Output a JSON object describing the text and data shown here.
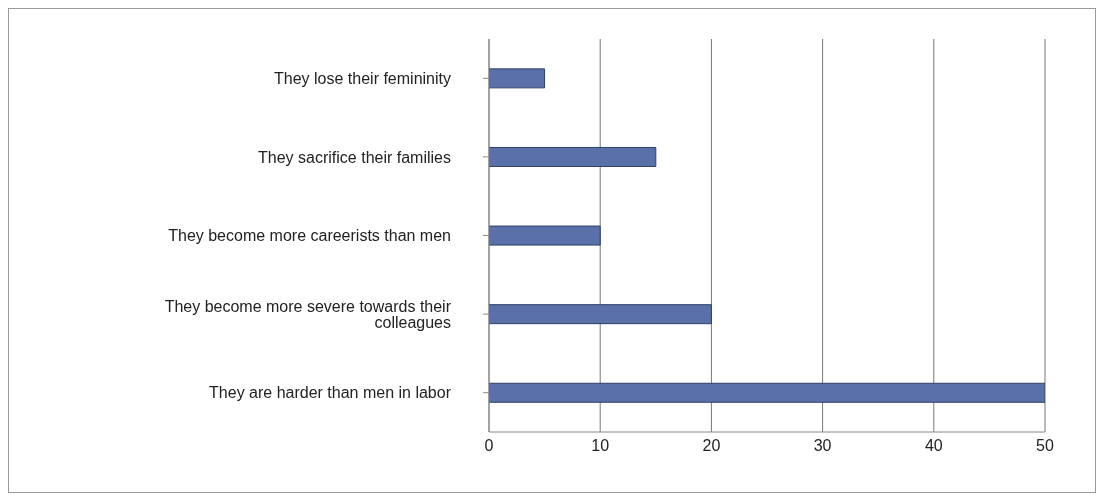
{
  "chart_data": {
    "type": "bar",
    "orientation": "horizontal",
    "categories": [
      "They lose their femininity",
      "They sacrifice their families",
      "They become more careerists than men",
      "They become more severe towards their colleagues",
      "They are harder than men in labor"
    ],
    "values": [
      5,
      15,
      10,
      20,
      50
    ],
    "color": "#5a70a8",
    "xlim": [
      0,
      50
    ],
    "xticks": [
      0,
      10,
      20,
      30,
      40,
      50
    ],
    "grid": "x"
  }
}
